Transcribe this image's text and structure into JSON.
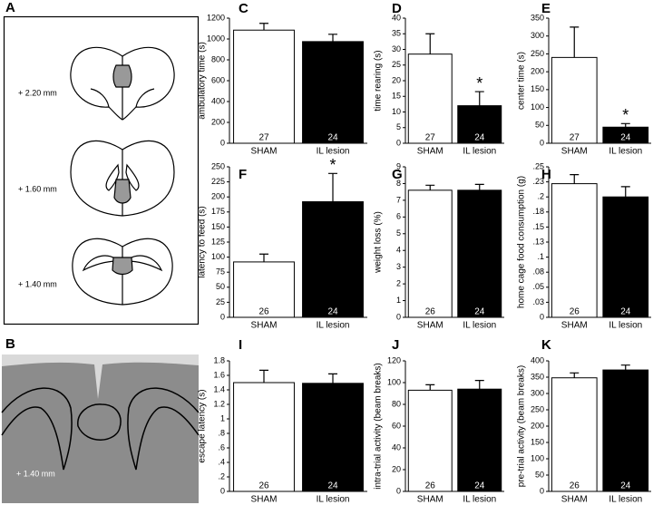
{
  "panel_a": {
    "label": "A",
    "levels": [
      "+ 2.20 mm",
      "+ 1.60 mm",
      "+ 1.40 mm"
    ]
  },
  "panel_b": {
    "label": "B",
    "level": "+ 1.40 mm"
  },
  "chart_data": [
    {
      "type": "bar",
      "panel": "C",
      "y_label": "ambulatory time (s)",
      "categories": [
        "SHAM",
        "IL lesion"
      ],
      "values": [
        1085,
        975
      ],
      "errors": [
        65,
        70
      ],
      "n": [
        27,
        24
      ],
      "colors": [
        "#ffffff",
        "#000000"
      ],
      "ylim": [
        0,
        1200
      ],
      "yticks": [
        0,
        200,
        400,
        600,
        800,
        1000,
        1200
      ]
    },
    {
      "type": "bar",
      "panel": "D",
      "y_label": "time rearing (s)",
      "categories": [
        "SHAM",
        "IL lesion"
      ],
      "values": [
        28.5,
        12
      ],
      "errors": [
        6.5,
        4.5
      ],
      "n": [
        27,
        24
      ],
      "annotation": "*",
      "colors": [
        "#ffffff",
        "#000000"
      ],
      "ylim": [
        0,
        40
      ],
      "yticks": [
        0,
        5,
        10,
        15,
        20,
        25,
        30,
        35,
        40
      ]
    },
    {
      "type": "bar",
      "panel": "E",
      "y_label": "center time (s)",
      "categories": [
        "SHAM",
        "IL lesion"
      ],
      "values": [
        240,
        45
      ],
      "errors": [
        85,
        10
      ],
      "n": [
        27,
        24
      ],
      "annotation": "*",
      "colors": [
        "#ffffff",
        "#000000"
      ],
      "ylim": [
        0,
        350
      ],
      "yticks": [
        0,
        50,
        100,
        150,
        200,
        250,
        300,
        350
      ]
    },
    {
      "type": "bar",
      "panel": "F",
      "y_label": "latency to feed (s)",
      "categories": [
        "SHAM",
        "IL lesion"
      ],
      "values": [
        92,
        192
      ],
      "errors": [
        13,
        47
      ],
      "n": [
        26,
        24
      ],
      "annotation": "*",
      "colors": [
        "#ffffff",
        "#000000"
      ],
      "ylim": [
        0,
        250
      ],
      "yticks": [
        0,
        25,
        50,
        75,
        100,
        125,
        150,
        175,
        200,
        225,
        250
      ]
    },
    {
      "type": "bar",
      "panel": "G",
      "y_label": "weight loss (%)",
      "categories": [
        "SHAM",
        "IL lesion"
      ],
      "values": [
        7.6,
        7.6
      ],
      "errors": [
        0.3,
        0.35
      ],
      "n": [
        26,
        24
      ],
      "colors": [
        "#ffffff",
        "#000000"
      ],
      "ylim": [
        0,
        9
      ],
      "yticks": [
        0,
        1,
        2,
        3,
        4,
        5,
        6,
        7,
        8,
        9
      ]
    },
    {
      "type": "bar",
      "panel": "H",
      "y_label": "home cage food consumption (g)",
      "categories": [
        "SHAM",
        "IL lesion"
      ],
      "values": [
        0.222,
        0.2
      ],
      "errors": [
        0.015,
        0.017
      ],
      "n": [
        26,
        24
      ],
      "colors": [
        "#ffffff",
        "#000000"
      ],
      "ylim": [
        0,
        0.25
      ],
      "yticks": [
        0,
        {
          "value": 0.025,
          "label": ".03"
        },
        {
          "value": 0.05,
          "label": ".05"
        },
        {
          "value": 0.075,
          "label": ".08"
        },
        {
          "value": 0.1,
          "label": ".1"
        },
        {
          "value": 0.125,
          "label": ".13"
        },
        {
          "value": 0.15,
          "label": ".15"
        },
        {
          "value": 0.175,
          "label": ".18"
        },
        {
          "value": 0.2,
          "label": ".2"
        },
        {
          "value": 0.225,
          "label": ".23"
        },
        {
          "value": 0.25,
          "label": ".25"
        }
      ]
    },
    {
      "type": "bar",
      "panel": "I",
      "y_label": "escape latency (s)",
      "categories": [
        "SHAM",
        "IL lesion"
      ],
      "values": [
        1.5,
        1.49
      ],
      "errors": [
        0.17,
        0.13
      ],
      "n": [
        26,
        24
      ],
      "colors": [
        "#ffffff",
        "#000000"
      ],
      "ylim": [
        0,
        1.8
      ],
      "yticks": [
        0,
        {
          "value": 0.2,
          "label": ".2"
        },
        {
          "value": 0.4,
          "label": ".4"
        },
        {
          "value": 0.6,
          "label": ".6"
        },
        {
          "value": 0.8,
          "label": ".8"
        },
        1,
        1.2,
        1.4,
        1.6,
        1.8
      ]
    },
    {
      "type": "bar",
      "panel": "J",
      "y_label": "intra-trial activity (beam breaks)",
      "categories": [
        "SHAM",
        "IL lesion"
      ],
      "values": [
        93,
        94
      ],
      "errors": [
        5,
        8
      ],
      "n": [
        26,
        24
      ],
      "colors": [
        "#ffffff",
        "#000000"
      ],
      "ylim": [
        0,
        120
      ],
      "yticks": [
        0,
        20,
        40,
        60,
        80,
        100,
        120
      ]
    },
    {
      "type": "bar",
      "panel": "K",
      "y_label": "pre-trial activity (beam breaks)",
      "categories": [
        "SHAM",
        "IL lesion"
      ],
      "values": [
        348,
        372
      ],
      "errors": [
        15,
        15
      ],
      "n": [
        26,
        24
      ],
      "colors": [
        "#ffffff",
        "#000000"
      ],
      "ylim": [
        0,
        400
      ],
      "yticks": [
        0,
        50,
        100,
        150,
        200,
        250,
        300,
        350,
        400
      ]
    }
  ]
}
